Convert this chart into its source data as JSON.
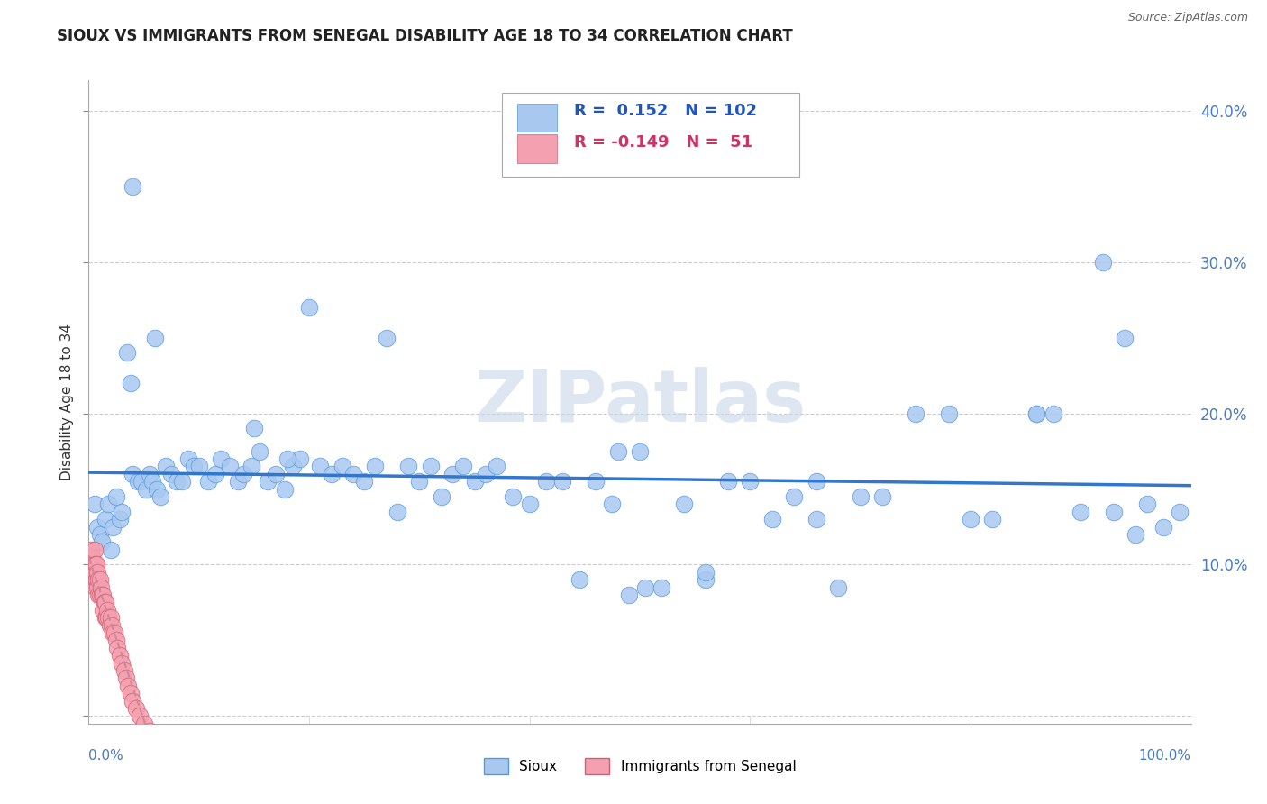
{
  "title": "SIOUX VS IMMIGRANTS FROM SENEGAL DISABILITY AGE 18 TO 34 CORRELATION CHART",
  "source": "Source: ZipAtlas.com",
  "ylabel": "Disability Age 18 to 34",
  "xlim": [
    0.0,
    1.0
  ],
  "ylim": [
    -0.005,
    0.42
  ],
  "r_sioux": 0.152,
  "n_sioux": 102,
  "r_senegal": -0.149,
  "n_senegal": 51,
  "sioux_color": "#a8c8f0",
  "sioux_edge_color": "#5599dd",
  "senegal_color": "#f4a0b0",
  "senegal_edge_color": "#d06070",
  "sioux_line_color": "#3377cc",
  "senegal_line_color": "#cc8899",
  "background_color": "#ffffff",
  "sioux_x": [
    0.005,
    0.008,
    0.01,
    0.012,
    0.015,
    0.018,
    0.02,
    0.022,
    0.025,
    0.028,
    0.03,
    0.035,
    0.038,
    0.04,
    0.045,
    0.048,
    0.052,
    0.055,
    0.058,
    0.062,
    0.065,
    0.07,
    0.075,
    0.08,
    0.085,
    0.09,
    0.095,
    0.1,
    0.108,
    0.115,
    0.12,
    0.128,
    0.135,
    0.14,
    0.148,
    0.155,
    0.162,
    0.17,
    0.178,
    0.185,
    0.192,
    0.2,
    0.21,
    0.22,
    0.23,
    0.24,
    0.25,
    0.26,
    0.27,
    0.28,
    0.29,
    0.3,
    0.31,
    0.32,
    0.33,
    0.34,
    0.35,
    0.36,
    0.37,
    0.385,
    0.4,
    0.415,
    0.43,
    0.445,
    0.46,
    0.475,
    0.49,
    0.505,
    0.52,
    0.54,
    0.56,
    0.58,
    0.6,
    0.62,
    0.64,
    0.66,
    0.68,
    0.7,
    0.72,
    0.75,
    0.78,
    0.82,
    0.86,
    0.86,
    0.9,
    0.92,
    0.93,
    0.96,
    0.975,
    0.99,
    0.04,
    0.06,
    0.15,
    0.18,
    0.48,
    0.5,
    0.56,
    0.66,
    0.8,
    0.95,
    0.875,
    0.94
  ],
  "sioux_y": [
    0.14,
    0.125,
    0.12,
    0.115,
    0.13,
    0.14,
    0.11,
    0.125,
    0.145,
    0.13,
    0.135,
    0.24,
    0.22,
    0.16,
    0.155,
    0.155,
    0.15,
    0.16,
    0.155,
    0.15,
    0.145,
    0.165,
    0.16,
    0.155,
    0.155,
    0.17,
    0.165,
    0.165,
    0.155,
    0.16,
    0.17,
    0.165,
    0.155,
    0.16,
    0.165,
    0.175,
    0.155,
    0.16,
    0.15,
    0.165,
    0.17,
    0.27,
    0.165,
    0.16,
    0.165,
    0.16,
    0.155,
    0.165,
    0.25,
    0.135,
    0.165,
    0.155,
    0.165,
    0.145,
    0.16,
    0.165,
    0.155,
    0.16,
    0.165,
    0.145,
    0.14,
    0.155,
    0.155,
    0.09,
    0.155,
    0.14,
    0.08,
    0.085,
    0.085,
    0.14,
    0.09,
    0.155,
    0.155,
    0.13,
    0.145,
    0.13,
    0.085,
    0.145,
    0.145,
    0.2,
    0.2,
    0.13,
    0.2,
    0.2,
    0.135,
    0.3,
    0.135,
    0.14,
    0.125,
    0.135,
    0.35,
    0.25,
    0.19,
    0.17,
    0.175,
    0.175,
    0.095,
    0.155,
    0.13,
    0.12,
    0.2,
    0.25
  ],
  "senegal_x": [
    0.002,
    0.002,
    0.003,
    0.003,
    0.003,
    0.004,
    0.004,
    0.005,
    0.005,
    0.005,
    0.006,
    0.006,
    0.006,
    0.007,
    0.007,
    0.008,
    0.008,
    0.009,
    0.009,
    0.01,
    0.01,
    0.011,
    0.012,
    0.013,
    0.013,
    0.014,
    0.015,
    0.015,
    0.016,
    0.017,
    0.018,
    0.019,
    0.02,
    0.021,
    0.022,
    0.023,
    0.025,
    0.026,
    0.028,
    0.03,
    0.032,
    0.034,
    0.036,
    0.038,
    0.04,
    0.043,
    0.046,
    0.05,
    0.055,
    0.06,
    0.07
  ],
  "senegal_y": [
    0.11,
    0.1,
    0.095,
    0.105,
    0.09,
    0.1,
    0.095,
    0.11,
    0.095,
    0.09,
    0.1,
    0.095,
    0.085,
    0.1,
    0.09,
    0.095,
    0.085,
    0.09,
    0.08,
    0.09,
    0.08,
    0.085,
    0.08,
    0.08,
    0.07,
    0.075,
    0.075,
    0.065,
    0.065,
    0.07,
    0.065,
    0.06,
    0.065,
    0.06,
    0.055,
    0.055,
    0.05,
    0.045,
    0.04,
    0.035,
    0.03,
    0.025,
    0.02,
    0.015,
    0.01,
    0.005,
    0.0,
    -0.005,
    -0.01,
    -0.015,
    -0.02
  ]
}
